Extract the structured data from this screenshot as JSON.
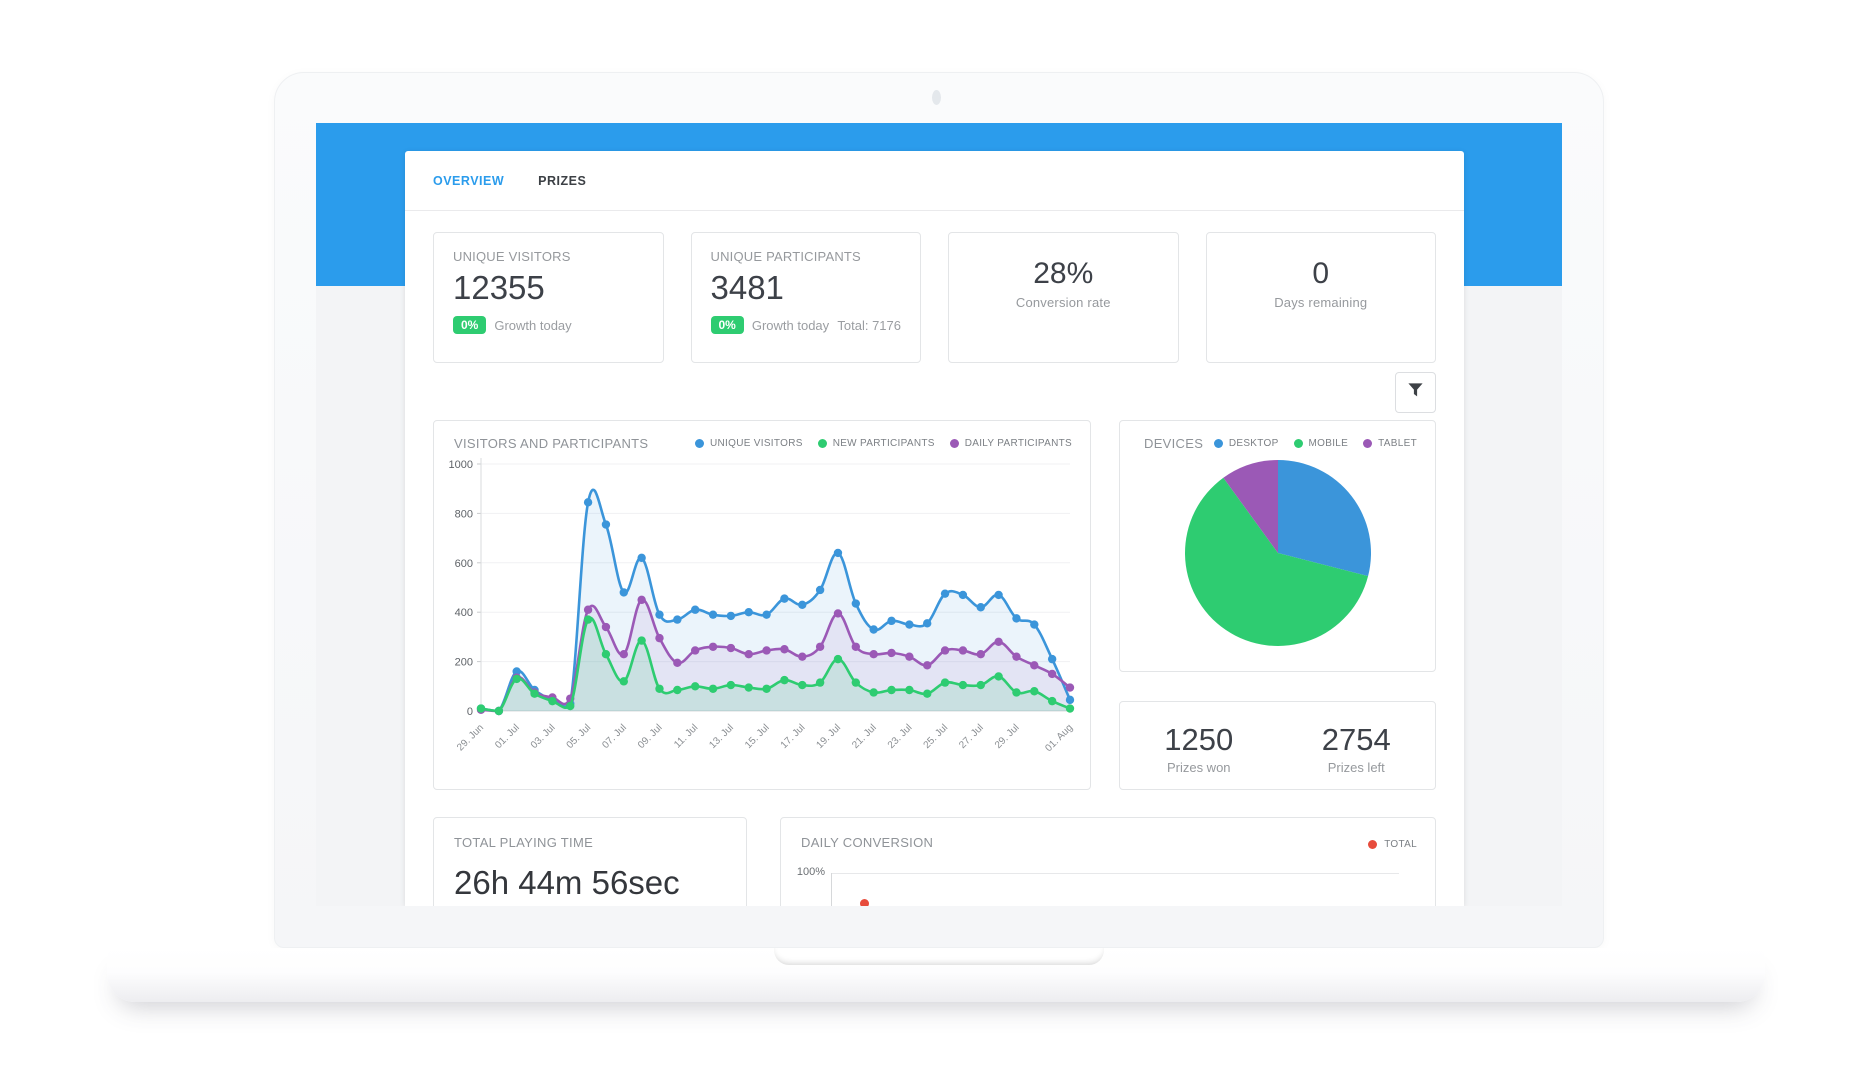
{
  "theme": {
    "header_blue": "#2b9cec",
    "green": "#2ecc71",
    "purple": "#9b59b6",
    "chart_blue": "#3b95da",
    "red": "#e74c3c"
  },
  "tabs": [
    {
      "label": "OVERVIEW",
      "active": true
    },
    {
      "label": "PRIZES",
      "active": false
    }
  ],
  "stats": {
    "unique_visitors": {
      "label": "UNIQUE VISITORS",
      "value": "12355",
      "badge": "0%",
      "note": "Growth today"
    },
    "unique_participants": {
      "label": "UNIQUE PARTICIPANTS",
      "value": "3481",
      "badge": "0%",
      "note": "Growth today",
      "total": "Total: 7176"
    },
    "conversion": {
      "value": "28%",
      "label": "Conversion rate"
    },
    "days_remaining": {
      "value": "0",
      "label": "Days remaining"
    }
  },
  "prizes": {
    "won": {
      "value": "1250",
      "label": "Prizes won"
    },
    "left": {
      "value": "2754",
      "label": "Prizes left"
    }
  },
  "playing_time": {
    "title": "TOTAL PLAYING TIME",
    "value": "26h 44m 56sec"
  },
  "chart_data": [
    {
      "id": "visitors_and_participants",
      "type": "line",
      "title": "VISITORS AND PARTICIPANTS",
      "x_labels": [
        "29. Jun",
        "01. Jul",
        "03. Jul",
        "05. Jul",
        "07. Jul",
        "09. Jul",
        "11. Jul",
        "13. Jul",
        "15. Jul",
        "17. Jul",
        "19. Jul",
        "21. Jul",
        "23. Jul",
        "25. Jul",
        "27. Jul",
        "29. Jul",
        "01. Aug"
      ],
      "ylim": [
        0,
        1000
      ],
      "y_ticks": [
        0,
        200,
        400,
        600,
        800,
        1000
      ],
      "legend_position": "top-right",
      "grid": true,
      "legend": [
        {
          "label": "UNIQUE VISITORS",
          "color": "#3b95da"
        },
        {
          "label": "NEW PARTICIPANTS",
          "color": "#2ecc71"
        },
        {
          "label": "DAILY PARTICIPANTS",
          "color": "#9b59b6"
        }
      ],
      "series": [
        {
          "name": "UNIQUE VISITORS",
          "color": "#3b95da",
          "values": [
            10,
            0,
            160,
            85,
            45,
            30,
            845,
            755,
            480,
            620,
            390,
            370,
            410,
            390,
            385,
            400,
            390,
            455,
            430,
            490,
            640,
            435,
            330,
            365,
            350,
            355,
            475,
            470,
            420,
            470,
            375,
            350,
            210,
            45
          ]
        },
        {
          "name": "DAILY PARTICIPANTS",
          "color": "#9b59b6",
          "values": [
            5,
            0,
            135,
            75,
            55,
            50,
            410,
            340,
            230,
            450,
            295,
            195,
            245,
            260,
            255,
            230,
            245,
            250,
            220,
            260,
            395,
            260,
            230,
            235,
            220,
            185,
            245,
            245,
            230,
            280,
            220,
            185,
            150,
            95
          ]
        },
        {
          "name": "NEW PARTICIPANTS",
          "color": "#2ecc71",
          "values": [
            10,
            0,
            130,
            70,
            40,
            20,
            370,
            230,
            120,
            285,
            90,
            85,
            100,
            90,
            105,
            95,
            90,
            125,
            105,
            115,
            210,
            115,
            75,
            85,
            85,
            70,
            115,
            105,
            105,
            140,
            75,
            80,
            40,
            10
          ]
        }
      ]
    },
    {
      "id": "devices",
      "type": "pie",
      "title": "DEVICES",
      "slices": [
        {
          "label": "DESKTOP",
          "color": "#3b95da",
          "value": 29
        },
        {
          "label": "MOBILE",
          "color": "#2ecc71",
          "value": 61
        },
        {
          "label": "TABLET",
          "color": "#9b59b6",
          "value": 10
        }
      ]
    },
    {
      "id": "daily_conversion",
      "type": "line",
      "title": "DAILY CONVERSION",
      "ylim": [
        0,
        100
      ],
      "y_axis_top": "100%",
      "series": [
        {
          "name": "TOTAL",
          "color": "#e74c3c"
        }
      ]
    }
  ]
}
